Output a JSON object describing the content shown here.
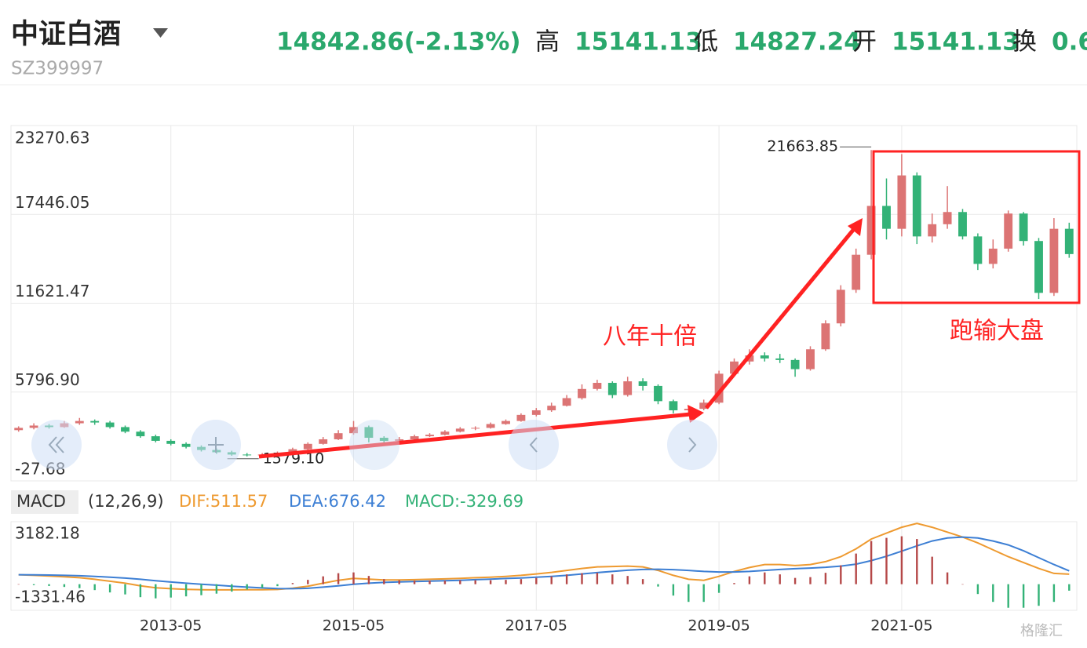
{
  "header": {
    "name": "中证白酒",
    "code": "SZ399997",
    "price": "14842.86(-2.13%)",
    "fields": [
      {
        "label": "高",
        "value": "15141.13"
      },
      {
        "label": "低",
        "value": "14827.24"
      },
      {
        "label": "开",
        "value": "15141.13"
      },
      {
        "label": "换",
        "value": "0.6"
      }
    ]
  },
  "annotations": [
    "八年十倍",
    "跑输大盘"
  ],
  "watermark": "格隆汇",
  "chart_data": [
    {
      "type": "candlestick",
      "categories": [
        null,
        null,
        null,
        null,
        null,
        null,
        null,
        null,
        null,
        null,
        "2013-05",
        null,
        null,
        null,
        null,
        null,
        null,
        null,
        null,
        null,
        null,
        null,
        "2015-05",
        null,
        null,
        null,
        null,
        null,
        null,
        null,
        null,
        null,
        null,
        null,
        "2017-05",
        null,
        null,
        null,
        null,
        null,
        null,
        null,
        null,
        null,
        null,
        null,
        "2019-05",
        null,
        null,
        null,
        null,
        null,
        null,
        null,
        null,
        null,
        null,
        null,
        "2021-05",
        null,
        null,
        null,
        null,
        null,
        null,
        null,
        null,
        null,
        null,
        null
      ],
      "open": [
        3300,
        3450,
        3600,
        3500,
        3750,
        3900,
        3800,
        3500,
        3200,
        2900,
        2600,
        2400,
        2200,
        2000,
        1850,
        1700,
        1650,
        1700,
        1800,
        2050,
        2400,
        2700,
        3100,
        3500,
        2800,
        2600,
        2700,
        2900,
        3000,
        3200,
        3400,
        3450,
        3700,
        3900,
        4300,
        4600,
        4900,
        5400,
        6000,
        6400,
        5600,
        6500,
        6200,
        5200,
        4600,
        4700,
        5100,
        7000,
        7800,
        8200,
        8000,
        7900,
        7300,
        8600,
        10300,
        12500,
        14800,
        18000,
        16500,
        20000,
        16000,
        16800,
        17600,
        16000,
        14200,
        15200,
        17500,
        15700,
        12300,
        16500
      ],
      "high": [
        3550,
        3750,
        3700,
        3900,
        4100,
        4000,
        3900,
        3600,
        3300,
        3000,
        2700,
        2500,
        2300,
        2100,
        1950,
        1800,
        1800,
        1900,
        2150,
        2500,
        2850,
        3300,
        3900,
        3600,
        2900,
        2850,
        3000,
        3100,
        3300,
        3500,
        3550,
        3800,
        4000,
        4400,
        4750,
        5100,
        5600,
        6300,
        6600,
        6500,
        6800,
        6700,
        6300,
        5300,
        4900,
        5300,
        7200,
        8000,
        8600,
        8400,
        8300,
        8000,
        8800,
        10500,
        12800,
        15200,
        21663.85,
        19800,
        21400,
        20200,
        17500,
        19300,
        17800,
        16200,
        15800,
        17700,
        17600,
        15900,
        17200,
        16900
      ],
      "low": [
        3200,
        3350,
        3400,
        3450,
        3650,
        3650,
        3400,
        3100,
        2800,
        2500,
        2300,
        2100,
        1900,
        1750,
        1620,
        1579.1,
        1600,
        1650,
        1750,
        2000,
        2350,
        2650,
        3000,
        2500,
        2400,
        2500,
        2650,
        2850,
        2950,
        3150,
        3300,
        3400,
        3650,
        3850,
        4200,
        4500,
        4850,
        5300,
        5900,
        5400,
        5500,
        5900,
        5000,
        4400,
        4400,
        4600,
        5000,
        6900,
        7600,
        7800,
        7700,
        6800,
        7200,
        8500,
        10100,
        12300,
        14500,
        15800,
        16000,
        15500,
        15600,
        16500,
        15800,
        13800,
        13900,
        15000,
        15400,
        11900,
        12100,
        14600
      ],
      "close": [
        3450,
        3600,
        3500,
        3750,
        3900,
        3800,
        3500,
        3200,
        2900,
        2600,
        2400,
        2200,
        2000,
        1850,
        1700,
        1650,
        1700,
        1800,
        2050,
        2400,
        2700,
        3100,
        3500,
        2800,
        2600,
        2700,
        2900,
        3000,
        3200,
        3400,
        3450,
        3700,
        3900,
        4300,
        4600,
        4900,
        5400,
        6000,
        6400,
        5600,
        6500,
        6200,
        5200,
        4600,
        4700,
        5100,
        7000,
        7800,
        8200,
        8000,
        7900,
        7300,
        8600,
        10300,
        12500,
        14800,
        18000,
        16500,
        20000,
        16000,
        16800,
        17600,
        16000,
        14200,
        15200,
        17500,
        15700,
        12300,
        16500,
        14842.86
      ],
      "up_color": "#dc7474",
      "down_color": "#33b277",
      "ylim": [
        -27.68,
        23270.63
      ],
      "yticks": [
        -27.68,
        {
          "value": 5796.9,
          "label": "5796.90"
        },
        11621.47,
        17446.05,
        23270.63
      ],
      "grid": true,
      "peak_label": "21663.85",
      "trough_label": "1579.10"
    },
    {
      "type": "macd",
      "title": "MACD",
      "subtitle": "(12,26,9)",
      "series": [
        {
          "name": "DIF:511.57",
          "color": "#ee9a30",
          "kind": "line",
          "values": [
            480,
            450,
            420,
            380,
            330,
            250,
            150,
            50,
            -80,
            -180,
            -230,
            -260,
            -280,
            -290,
            -290,
            -285,
            -280,
            -270,
            -200,
            -100,
            50,
            200,
            300,
            260,
            220,
            220,
            230,
            250,
            270,
            300,
            330,
            360,
            400,
            450,
            520,
            600,
            700,
            800,
            880,
            900,
            920,
            880,
            700,
            450,
            250,
            200,
            400,
            650,
            850,
            1000,
            1000,
            950,
            1000,
            1150,
            1400,
            1800,
            2300,
            2600,
            2900,
            3100,
            2900,
            2650,
            2400,
            2100,
            1750,
            1400,
            1100,
            800,
            550,
            511.57
          ]
        },
        {
          "name": "DEA:676.42",
          "color": "#3d7fd4",
          "kind": "line",
          "values": [
            480,
            475,
            465,
            450,
            430,
            400,
            360,
            310,
            250,
            180,
            110,
            50,
            0,
            -50,
            -100,
            -150,
            -190,
            -220,
            -230,
            -210,
            -150,
            -80,
            0,
            50,
            90,
            120,
            140,
            160,
            180,
            200,
            230,
            260,
            290,
            320,
            360,
            400,
            450,
            520,
            590,
            650,
            710,
            750,
            760,
            740,
            700,
            650,
            620,
            620,
            650,
            700,
            750,
            790,
            820,
            860,
            920,
            1020,
            1200,
            1420,
            1680,
            1950,
            2200,
            2350,
            2400,
            2350,
            2200,
            2000,
            1700,
            1350,
            1000,
            676.42
          ]
        },
        {
          "name": "MACD:-329.69",
          "color": "#33b277",
          "kind": "bar",
          "up_color": "#b54848",
          "down_color": "#33b277",
          "values": [
            0,
            -50,
            -90,
            -140,
            -200,
            -300,
            -420,
            -520,
            -660,
            -720,
            -680,
            -620,
            -560,
            -480,
            -380,
            -270,
            -180,
            -100,
            60,
            220,
            400,
            560,
            600,
            420,
            260,
            200,
            180,
            180,
            180,
            200,
            200,
            200,
            220,
            260,
            320,
            400,
            500,
            560,
            580,
            500,
            420,
            260,
            -120,
            -580,
            -900,
            -900,
            -440,
            60,
            400,
            600,
            500,
            320,
            360,
            580,
            960,
            1560,
            2200,
            2360,
            2440,
            2300,
            1400,
            600,
            0,
            -500,
            -900,
            -1200,
            -1200,
            -1100,
            -900,
            -329.69
          ]
        }
      ],
      "ylim": [
        -1331.46,
        3182.18
      ],
      "yticks": [
        -1331.46,
        3182.18
      ]
    }
  ]
}
